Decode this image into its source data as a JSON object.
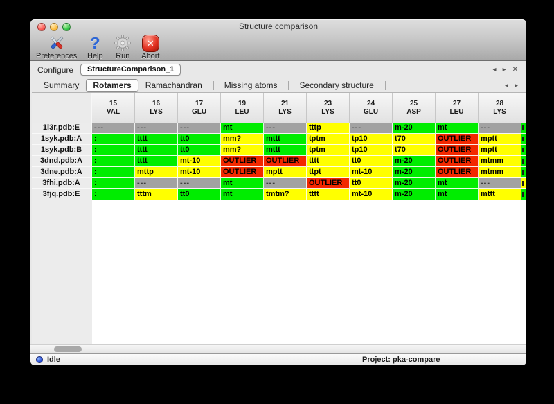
{
  "window": {
    "title": "Structure comparison"
  },
  "toolbar": {
    "items": [
      {
        "label": "Preferences"
      },
      {
        "label": "Help"
      },
      {
        "label": "Run"
      },
      {
        "label": "Abort"
      }
    ]
  },
  "configure_bar": {
    "label": "Configure",
    "active_config": "StructureComparison_1",
    "nav_back": "◂",
    "nav_forward": "▸",
    "nav_close": "✕"
  },
  "tab_bar": {
    "tabs": [
      "Summary",
      "Rotamers",
      "Ramachandran",
      "Missing atoms",
      "Secondary structure"
    ],
    "selected_index": 1,
    "nav_back": "◂",
    "nav_forward": "▸"
  },
  "legend_colors": {
    "green": "#00ed00",
    "yellow": "#ffff00",
    "red": "#f32800",
    "gray": "#a2a2a2"
  },
  "table": {
    "columns": [
      [
        "15",
        "VAL"
      ],
      [
        "16",
        "LYS"
      ],
      [
        "17",
        "GLU"
      ],
      [
        "19",
        "LEU"
      ],
      [
        "21",
        "LYS"
      ],
      [
        "23",
        "LYS"
      ],
      [
        "24",
        "GLU"
      ],
      [
        "25",
        "ASP"
      ],
      [
        "27",
        "LEU"
      ],
      [
        "28",
        "LYS"
      ]
    ],
    "rows": [
      {
        "label": "1l3r.pdb:E",
        "cells": [
          [
            "---",
            "gray"
          ],
          [
            "---",
            "gray"
          ],
          [
            "---",
            "gray"
          ],
          [
            "mt",
            "green"
          ],
          [
            "---",
            "gray"
          ],
          [
            "tttp",
            "yellow"
          ],
          [
            "---",
            "gray"
          ],
          [
            "m-20",
            "green"
          ],
          [
            "mt",
            "green"
          ],
          [
            "---",
            "gray"
          ]
        ],
        "edge": "green"
      },
      {
        "label": "1syk.pdb:A",
        "cells": [
          [
            ":",
            "green"
          ],
          [
            "tttt",
            "green"
          ],
          [
            "tt0",
            "green"
          ],
          [
            "mm?",
            "yellow"
          ],
          [
            "mttt",
            "green"
          ],
          [
            "tptm",
            "yellow"
          ],
          [
            "tp10",
            "yellow"
          ],
          [
            "t70",
            "yellow"
          ],
          [
            "OUTLIER",
            "red"
          ],
          [
            "mptt",
            "yellow"
          ]
        ],
        "edge": "green"
      },
      {
        "label": "1syk.pdb:B",
        "cells": [
          [
            ":",
            "green"
          ],
          [
            "tttt",
            "green"
          ],
          [
            "tt0",
            "green"
          ],
          [
            "mm?",
            "yellow"
          ],
          [
            "mttt",
            "green"
          ],
          [
            "tptm",
            "yellow"
          ],
          [
            "tp10",
            "yellow"
          ],
          [
            "t70",
            "yellow"
          ],
          [
            "OUTLIER",
            "red"
          ],
          [
            "mptt",
            "yellow"
          ]
        ],
        "edge": "green"
      },
      {
        "label": "3dnd.pdb:A",
        "cells": [
          [
            ":",
            "green"
          ],
          [
            "tttt",
            "green"
          ],
          [
            "mt-10",
            "yellow"
          ],
          [
            "OUTLIER",
            "red"
          ],
          [
            "OUTLIER",
            "red"
          ],
          [
            "tttt",
            "yellow"
          ],
          [
            "tt0",
            "yellow"
          ],
          [
            "m-20",
            "green"
          ],
          [
            "OUTLIER",
            "red"
          ],
          [
            "mtmm",
            "yellow"
          ]
        ],
        "edge": "green"
      },
      {
        "label": "3dne.pdb:A",
        "cells": [
          [
            ":",
            "green"
          ],
          [
            "mttp",
            "yellow"
          ],
          [
            "mt-10",
            "yellow"
          ],
          [
            "OUTLIER",
            "red"
          ],
          [
            "mptt",
            "yellow"
          ],
          [
            "ttpt",
            "yellow"
          ],
          [
            "mt-10",
            "yellow"
          ],
          [
            "m-20",
            "green"
          ],
          [
            "OUTLIER",
            "red"
          ],
          [
            "mtmm",
            "yellow"
          ]
        ],
        "edge": "green"
      },
      {
        "label": "3fhi.pdb:A",
        "cells": [
          [
            ":",
            "green"
          ],
          [
            "---",
            "gray"
          ],
          [
            "---",
            "gray"
          ],
          [
            "mt",
            "green"
          ],
          [
            "---",
            "gray"
          ],
          [
            "OUTLIER",
            "red"
          ],
          [
            "tt0",
            "yellow"
          ],
          [
            "m-20",
            "green"
          ],
          [
            "mt",
            "green"
          ],
          [
            "---",
            "gray"
          ]
        ],
        "edge": "yellow"
      },
      {
        "label": "3fjq.pdb:E",
        "cells": [
          [
            ":",
            "green"
          ],
          [
            "tttm",
            "yellow"
          ],
          [
            "tt0",
            "green"
          ],
          [
            "mt",
            "green"
          ],
          [
            "tmtm?",
            "yellow"
          ],
          [
            "tttt",
            "yellow"
          ],
          [
            "mt-10",
            "yellow"
          ],
          [
            "m-20",
            "green"
          ],
          [
            "mt",
            "green"
          ],
          [
            "mttt",
            "yellow"
          ]
        ],
        "edge": "green"
      }
    ]
  },
  "statusbar": {
    "status": "Idle",
    "project": "Project: pka-compare"
  }
}
